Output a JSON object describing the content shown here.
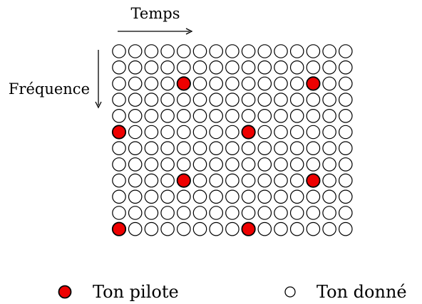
{
  "labels": {
    "time": "Temps",
    "frequency": "Fréquence"
  },
  "legend": {
    "pilot": "Ton pilote",
    "data": "Ton donné"
  },
  "colors": {
    "pilot_fill": "#ee0000",
    "data_fill": "#ffffff",
    "stroke": "#000000"
  },
  "grid": {
    "rows": 12,
    "cols": 15,
    "pilot_cells": [
      [
        2,
        4
      ],
      [
        2,
        12
      ],
      [
        5,
        0
      ],
      [
        5,
        8
      ],
      [
        8,
        4
      ],
      [
        8,
        12
      ],
      [
        11,
        0
      ],
      [
        11,
        8
      ]
    ]
  }
}
